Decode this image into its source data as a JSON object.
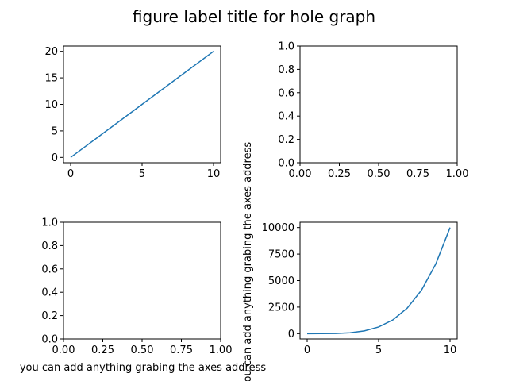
{
  "figure": {
    "suptitle": "figure label title for hole graph",
    "line_color": "#1f77b4"
  },
  "chart_data": [
    {
      "type": "line",
      "position": "top-left",
      "title": "",
      "xlabel": "",
      "ylabel": "",
      "x": [
        0,
        1,
        2,
        3,
        4,
        5,
        6,
        7,
        8,
        9,
        10
      ],
      "series": [
        {
          "values": [
            0,
            2,
            4,
            6,
            8,
            10,
            12,
            14,
            16,
            18,
            20
          ]
        }
      ],
      "xlim": [
        -0.5,
        10.5
      ],
      "ylim": [
        -1,
        21
      ],
      "xticks": [
        0,
        5,
        10
      ],
      "yticks": [
        0,
        5,
        10,
        15,
        20
      ],
      "xtick_labels": [
        "0",
        "5",
        "10"
      ],
      "ytick_labels": [
        "0",
        "5",
        "10",
        "15",
        "20"
      ],
      "grid": false
    },
    {
      "type": "line",
      "position": "top-right",
      "title": "",
      "xlabel": "",
      "ylabel": "",
      "series": [],
      "xlim": [
        0,
        1
      ],
      "ylim": [
        0,
        1
      ],
      "xticks": [
        0,
        0.25,
        0.5,
        0.75,
        1
      ],
      "yticks": [
        0,
        0.2,
        0.4,
        0.6,
        0.8,
        1
      ],
      "xtick_labels": [
        "0.00",
        "0.25",
        "0.50",
        "0.75",
        "1.00"
      ],
      "ytick_labels": [
        "0.0",
        "0.2",
        "0.4",
        "0.6",
        "0.8",
        "1.0"
      ],
      "grid": false
    },
    {
      "type": "line",
      "position": "bottom-left",
      "title": "",
      "xlabel": "you can add anything grabing the axes address",
      "ylabel": "",
      "series": [],
      "xlim": [
        0,
        1
      ],
      "ylim": [
        0,
        1
      ],
      "xticks": [
        0,
        0.25,
        0.5,
        0.75,
        1
      ],
      "yticks": [
        0,
        0.2,
        0.4,
        0.6,
        0.8,
        1
      ],
      "xtick_labels": [
        "0.00",
        "0.25",
        "0.50",
        "0.75",
        "1.00"
      ],
      "ytick_labels": [
        "0.0",
        "0.2",
        "0.4",
        "0.6",
        "0.8",
        "1.0"
      ],
      "grid": false
    },
    {
      "type": "line",
      "position": "bottom-right",
      "title": "",
      "xlabel": "",
      "ylabel": "you can add anything grabing the axes address",
      "x": [
        0,
        1,
        2,
        3,
        4,
        5,
        6,
        7,
        8,
        9,
        10
      ],
      "series": [
        {
          "values": [
            0,
            1,
            16,
            81,
            256,
            625,
            1296,
            2401,
            4096,
            6561,
            10000
          ]
        }
      ],
      "xlim": [
        -0.5,
        10.5
      ],
      "ylim": [
        -500,
        10500
      ],
      "xticks": [
        0,
        5,
        10
      ],
      "yticks": [
        0,
        2500,
        5000,
        7500,
        10000
      ],
      "xtick_labels": [
        "0",
        "5",
        "10"
      ],
      "ytick_labels": [
        "0",
        "2500",
        "5000",
        "7500",
        "10000"
      ],
      "grid": false
    }
  ]
}
